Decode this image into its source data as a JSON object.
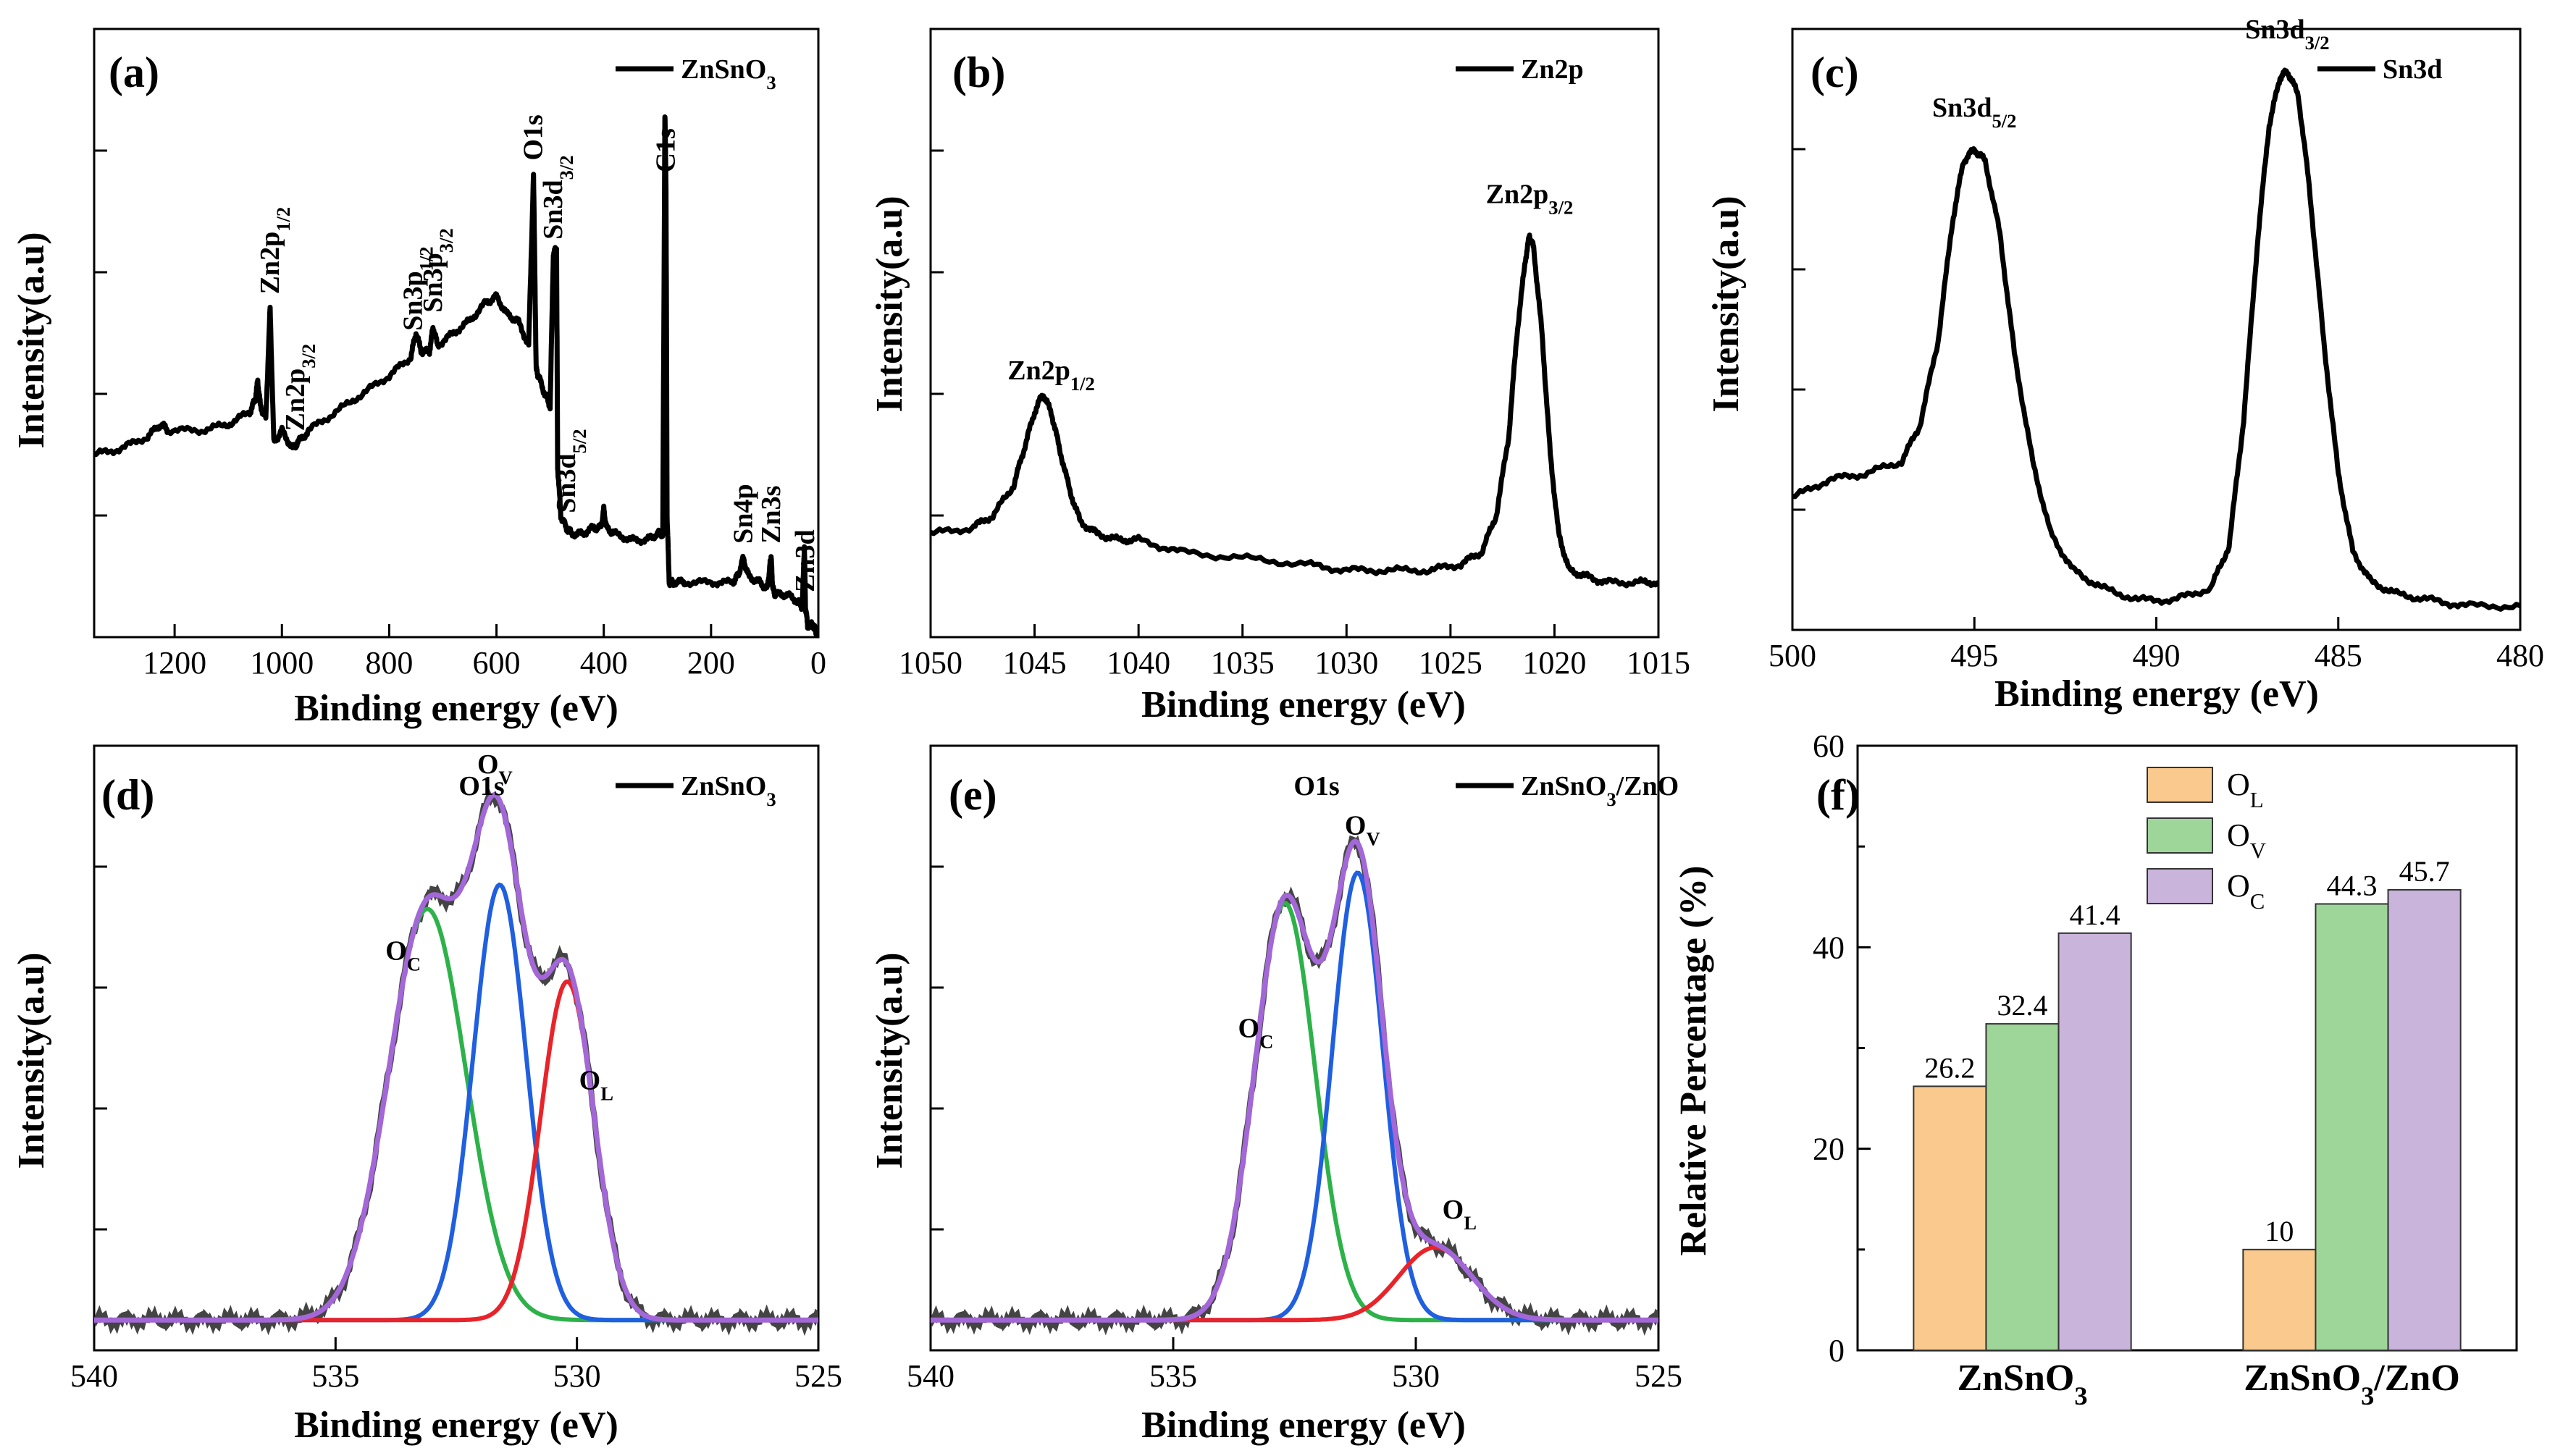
{
  "chart_data": [
    {
      "id": "a",
      "type": "line",
      "panel_label": "(a)",
      "xlabel": "Binding energy (eV)",
      "ylabel": "Intensity(a.u)",
      "xlim": [
        1350,
        0
      ],
      "ylim": [
        0,
        1
      ],
      "xticks": [
        1200,
        1000,
        800,
        600,
        400,
        200,
        0
      ],
      "legend": "ZnSnO3",
      "series": [
        {
          "name": "ZnSnO3",
          "x": [
            1350,
            1300,
            1250,
            1225,
            1212,
            1150,
            1100,
            1060,
            1050,
            1045,
            1040,
            1030,
            1022,
            1015,
            1000,
            980,
            970,
            950,
            900,
            850,
            800,
            760,
            750,
            740,
            725,
            718,
            710,
            680,
            650,
            620,
            600,
            580,
            560,
            540,
            531,
            526,
            522,
            510,
            500,
            494,
            488,
            486,
            480,
            470,
            460,
            440,
            420,
            405,
            400,
            395,
            380,
            350,
            320,
            300,
            290,
            286,
            284,
            282,
            278,
            270,
            250,
            200,
            160,
            150,
            140,
            130,
            110,
            95,
            90,
            88,
            85,
            80,
            60,
            40,
            30,
            26,
            24,
            20,
            10,
            5,
            0
          ],
          "y": [
            0.3,
            0.31,
            0.33,
            0.35,
            0.34,
            0.34,
            0.35,
            0.37,
            0.39,
            0.42,
            0.38,
            0.36,
            0.54,
            0.32,
            0.34,
            0.31,
            0.32,
            0.34,
            0.37,
            0.4,
            0.43,
            0.46,
            0.5,
            0.47,
            0.47,
            0.51,
            0.48,
            0.5,
            0.52,
            0.55,
            0.56,
            0.53,
            0.52,
            0.48,
            0.76,
            0.44,
            0.43,
            0.4,
            0.38,
            0.63,
            0.64,
            0.28,
            0.2,
            0.18,
            0.17,
            0.17,
            0.18,
            0.18,
            0.21,
            0.18,
            0.17,
            0.16,
            0.16,
            0.17,
            0.17,
            0.86,
            0.74,
            0.2,
            0.09,
            0.09,
            0.09,
            0.09,
            0.09,
            0.1,
            0.13,
            0.1,
            0.09,
            0.08,
            0.12,
            0.13,
            0.08,
            0.07,
            0.07,
            0.06,
            0.05,
            0.15,
            0.05,
            0.02,
            0.02,
            0.01,
            0.0
          ]
        }
      ],
      "annotations": [
        {
          "text": "Zn2p1/2",
          "x": 1022
        },
        {
          "text": "Zn2p3/2",
          "x": 975
        },
        {
          "text": "Sn3p1/2",
          "x": 755
        },
        {
          "text": "Sn3p3/2",
          "x": 718
        },
        {
          "text": "O1s",
          "x": 531
        },
        {
          "text": "Sn3d3/2",
          "x": 494
        },
        {
          "text": "Sn3d5/2",
          "x": 470
        },
        {
          "text": "C1s",
          "x": 284
        },
        {
          "text": "Sn4p",
          "x": 140
        },
        {
          "text": "Zn3s",
          "x": 88
        },
        {
          "text": "Zn3d",
          "x": 24
        }
      ]
    },
    {
      "id": "b",
      "type": "line",
      "panel_label": "(b)",
      "xlabel": "Binding energy (eV)",
      "ylabel": "Intensity(a.u)",
      "xlim": [
        1050,
        1015
      ],
      "ylim": [
        0,
        1
      ],
      "xticks": [
        1050,
        1045,
        1040,
        1035,
        1030,
        1025,
        1020,
        1015
      ],
      "legend": "Zn2p",
      "series": [
        {
          "name": "Zn2p",
          "x": [
            1050,
            1048,
            1047,
            1046,
            1045.5,
            1045,
            1044.6,
            1044.2,
            1043.8,
            1043.3,
            1042.8,
            1042,
            1041,
            1040,
            1038,
            1035,
            1032,
            1030,
            1028,
            1026,
            1024.5,
            1023.5,
            1022.8,
            1022.2,
            1021.8,
            1021.4,
            1021.2,
            1021.0,
            1020.6,
            1020.2,
            1019.8,
            1019.3,
            1018.5,
            1017.5,
            1016,
            1015
          ],
          "y": [
            0.17,
            0.18,
            0.2,
            0.25,
            0.31,
            0.37,
            0.4,
            0.37,
            0.31,
            0.24,
            0.19,
            0.17,
            0.16,
            0.16,
            0.14,
            0.13,
            0.12,
            0.11,
            0.11,
            0.11,
            0.12,
            0.14,
            0.2,
            0.33,
            0.5,
            0.62,
            0.66,
            0.64,
            0.5,
            0.3,
            0.17,
            0.11,
            0.1,
            0.09,
            0.09,
            0.09
          ]
        }
      ],
      "annotations": [
        {
          "text": "Zn2p1/2",
          "x": 1044.2
        },
        {
          "text": "Zn2p3/2",
          "x": 1021.2
        }
      ]
    },
    {
      "id": "c",
      "type": "line",
      "panel_label": "(c)",
      "xlabel": "Binding energy (eV)",
      "ylabel": "Intensity(a.u)",
      "xlim": [
        500,
        480
      ],
      "ylim": [
        0,
        1
      ],
      "xticks": [
        500,
        495,
        490,
        485,
        480
      ],
      "legend": "Sn3d",
      "series": [
        {
          "name": "Sn3d",
          "x": [
            500,
            499,
            498,
            497,
            496.5,
            496,
            495.6,
            495.3,
            495.0,
            494.7,
            494.3,
            493.9,
            493.4,
            492.9,
            492.3,
            491.5,
            490.5,
            489.5,
            488.5,
            488,
            487.6,
            487.2,
            486.9,
            486.6,
            486.4,
            486.1,
            485.8,
            485.4,
            485.0,
            484.6,
            484.1,
            483.4,
            482.5,
            481.5,
            480
          ],
          "y": [
            0.22,
            0.25,
            0.26,
            0.28,
            0.34,
            0.48,
            0.68,
            0.78,
            0.8,
            0.78,
            0.66,
            0.46,
            0.28,
            0.16,
            0.1,
            0.07,
            0.05,
            0.05,
            0.07,
            0.14,
            0.35,
            0.66,
            0.84,
            0.92,
            0.93,
            0.89,
            0.74,
            0.48,
            0.26,
            0.13,
            0.08,
            0.06,
            0.05,
            0.04,
            0.04
          ]
        }
      ],
      "annotations": [
        {
          "text": "Sn3d5/2",
          "x": 495.0
        },
        {
          "text": "Sn3d3/2",
          "x": 486.4
        }
      ]
    },
    {
      "id": "d",
      "type": "line",
      "panel_label": "(d)",
      "title": "O1s",
      "xlabel": "Binding energy (eV)",
      "ylabel": "Intensity(a.u)",
      "xlim": [
        540,
        525
      ],
      "ylim": [
        0,
        1
      ],
      "xticks": [
        540,
        535,
        530,
        525
      ],
      "legend": "ZnSnO3",
      "baseline": 0.05,
      "peaks": [
        {
          "name": "OC",
          "center": 533.1,
          "height": 0.68,
          "sigma": 0.8,
          "color": "#2db24a"
        },
        {
          "name": "OV",
          "center": 531.6,
          "height": 0.72,
          "sigma": 0.55,
          "color": "#1f5fe0"
        },
        {
          "name": "OL",
          "center": 530.2,
          "height": 0.56,
          "sigma": 0.55,
          "color": "#e8242a"
        }
      ],
      "annotations": [
        {
          "text": "OC",
          "x": 533.6
        },
        {
          "text": "OV",
          "x": 531.7
        },
        {
          "text": "OL",
          "x": 529.6
        }
      ]
    },
    {
      "id": "e",
      "type": "line",
      "panel_label": "(e)",
      "title": "O1s",
      "xlabel": "Binding energy (eV)",
      "ylabel": "Intensity(a.u)",
      "xlim": [
        540,
        525
      ],
      "ylim": [
        0,
        1
      ],
      "xticks": [
        540,
        535,
        530,
        525
      ],
      "legend": "ZnSnO3/ZnO",
      "baseline": 0.05,
      "peaks": [
        {
          "name": "OC",
          "center": 532.7,
          "height": 0.69,
          "sigma": 0.62,
          "color": "#2db24a"
        },
        {
          "name": "OV",
          "center": 531.2,
          "height": 0.74,
          "sigma": 0.52,
          "color": "#1f5fe0"
        },
        {
          "name": "OL",
          "center": 529.6,
          "height": 0.12,
          "sigma": 0.75,
          "color": "#e8242a"
        }
      ],
      "annotations": [
        {
          "text": "OC",
          "x": 533.3
        },
        {
          "text": "OV",
          "x": 531.1
        },
        {
          "text": "OL",
          "x": 529.1
        }
      ]
    },
    {
      "id": "f",
      "type": "bar",
      "panel_label": "(f)",
      "xlabel": "",
      "ylabel": "Relative Percentage (%)",
      "ylim": [
        0,
        60
      ],
      "yticks": [
        0,
        20,
        40,
        60
      ],
      "categories": [
        "ZnSnO3",
        "ZnSnO3/ZnO"
      ],
      "series": [
        {
          "name": "OL",
          "color": "#f9c98d",
          "values": [
            26.2,
            10
          ]
        },
        {
          "name": "OV",
          "color": "#9ed69a",
          "values": [
            32.4,
            44.3
          ]
        },
        {
          "name": "OC",
          "color": "#c9b4db",
          "values": [
            41.4,
            45.7
          ]
        }
      ],
      "value_labels": [
        [
          "26.2",
          "10"
        ],
        [
          "32.4",
          "44.3"
        ],
        [
          "41.4",
          "45.7"
        ]
      ]
    }
  ]
}
